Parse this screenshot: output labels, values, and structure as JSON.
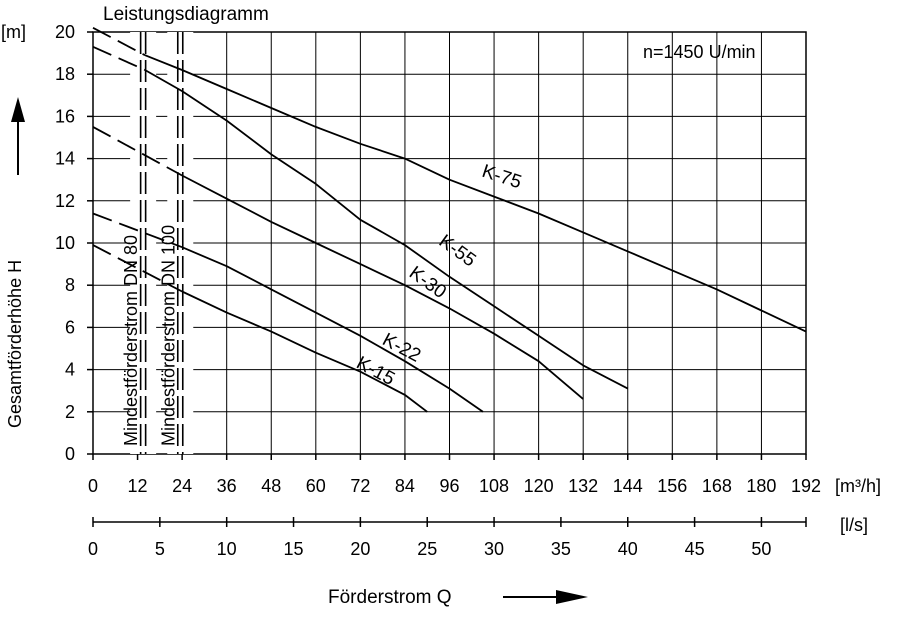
{
  "chart_data": {
    "type": "line",
    "title": "Leistungsdiagramm",
    "annotation": "n=1450 U/min",
    "ylabel": "Gesamtförderhöhe  H",
    "y_unit": "[m]",
    "xlabel": "Förderstrom  Q",
    "x_unit": "[m³/h]",
    "x2_unit": "[l/s]",
    "xlim": [
      0,
      192
    ],
    "ylim": [
      0,
      20
    ],
    "x_ticks": [
      0,
      12,
      24,
      36,
      48,
      60,
      72,
      84,
      96,
      108,
      120,
      132,
      144,
      156,
      168,
      180,
      192
    ],
    "y_ticks": [
      0,
      2,
      4,
      6,
      8,
      10,
      12,
      14,
      16,
      18,
      20
    ],
    "x2_ticks": [
      0,
      5,
      10,
      15,
      20,
      25,
      30,
      35,
      40,
      45,
      50
    ],
    "grid": true,
    "min_flow_labels": [
      {
        "label": "Mindestförderstrom DN 80",
        "x": 13.5
      },
      {
        "label": "Mindestförderstrom DN 100",
        "x": 23.5
      }
    ],
    "series": [
      {
        "name": "K-75",
        "solid": [
          [
            14,
            18.9
          ],
          [
            24,
            18.2
          ],
          [
            36,
            17.3
          ],
          [
            48,
            16.4
          ],
          [
            60,
            15.5
          ],
          [
            72,
            14.7
          ],
          [
            84,
            14.0
          ],
          [
            96,
            13.0
          ],
          [
            108,
            12.2
          ],
          [
            120,
            11.4
          ],
          [
            132,
            10.5
          ],
          [
            144,
            9.6
          ],
          [
            156,
            8.7
          ],
          [
            168,
            7.8
          ],
          [
            180,
            6.8
          ],
          [
            192,
            5.8
          ]
        ],
        "dashed": [
          [
            0,
            20.2
          ],
          [
            14,
            18.9
          ]
        ]
      },
      {
        "name": "K-55",
        "solid": [
          [
            14,
            18.2
          ],
          [
            24,
            17.2
          ],
          [
            36,
            15.8
          ],
          [
            48,
            14.2
          ],
          [
            60,
            12.8
          ],
          [
            72,
            11.1
          ],
          [
            84,
            9.9
          ],
          [
            96,
            8.4
          ],
          [
            108,
            7.0
          ],
          [
            120,
            5.6
          ],
          [
            132,
            4.2
          ],
          [
            144,
            3.1
          ]
        ],
        "dashed": [
          [
            0,
            19.3
          ],
          [
            14,
            18.2
          ]
        ]
      },
      {
        "name": "K-30",
        "solid": [
          [
            24,
            13.2
          ],
          [
            36,
            12.1
          ],
          [
            48,
            11.0
          ],
          [
            60,
            10.0
          ],
          [
            72,
            9.0
          ],
          [
            84,
            8.0
          ],
          [
            96,
            6.9
          ],
          [
            108,
            5.7
          ],
          [
            120,
            4.4
          ],
          [
            132,
            2.6
          ]
        ],
        "dashed": [
          [
            0,
            15.5
          ],
          [
            24,
            13.2
          ]
        ]
      },
      {
        "name": "K-22",
        "solid": [
          [
            24,
            9.8
          ],
          [
            36,
            8.9
          ],
          [
            48,
            7.8
          ],
          [
            60,
            6.7
          ],
          [
            72,
            5.6
          ],
          [
            84,
            4.4
          ],
          [
            96,
            3.1
          ],
          [
            105,
            2.0
          ]
        ],
        "dashed": [
          [
            0,
            11.4
          ],
          [
            24,
            9.8
          ]
        ]
      },
      {
        "name": "K-15",
        "solid": [
          [
            24,
            7.7
          ],
          [
            36,
            6.7
          ],
          [
            48,
            5.8
          ],
          [
            60,
            4.8
          ],
          [
            72,
            3.9
          ],
          [
            84,
            2.8
          ],
          [
            90,
            2.0
          ]
        ],
        "dashed": [
          [
            0,
            9.9
          ],
          [
            24,
            7.7
          ]
        ]
      }
    ],
    "curve_labels": [
      {
        "text": "K-75",
        "x": 110,
        "y": 13.1,
        "angle": 18
      },
      {
        "text": "K-55",
        "x": 98,
        "y": 9.6,
        "angle": 36
      },
      {
        "text": "K-30",
        "x": 90,
        "y": 8.1,
        "angle": 36
      },
      {
        "text": "K-22",
        "x": 83,
        "y": 5.0,
        "angle": 28
      },
      {
        "text": "K-15",
        "x": 76,
        "y": 3.9,
        "angle": 28
      }
    ]
  }
}
